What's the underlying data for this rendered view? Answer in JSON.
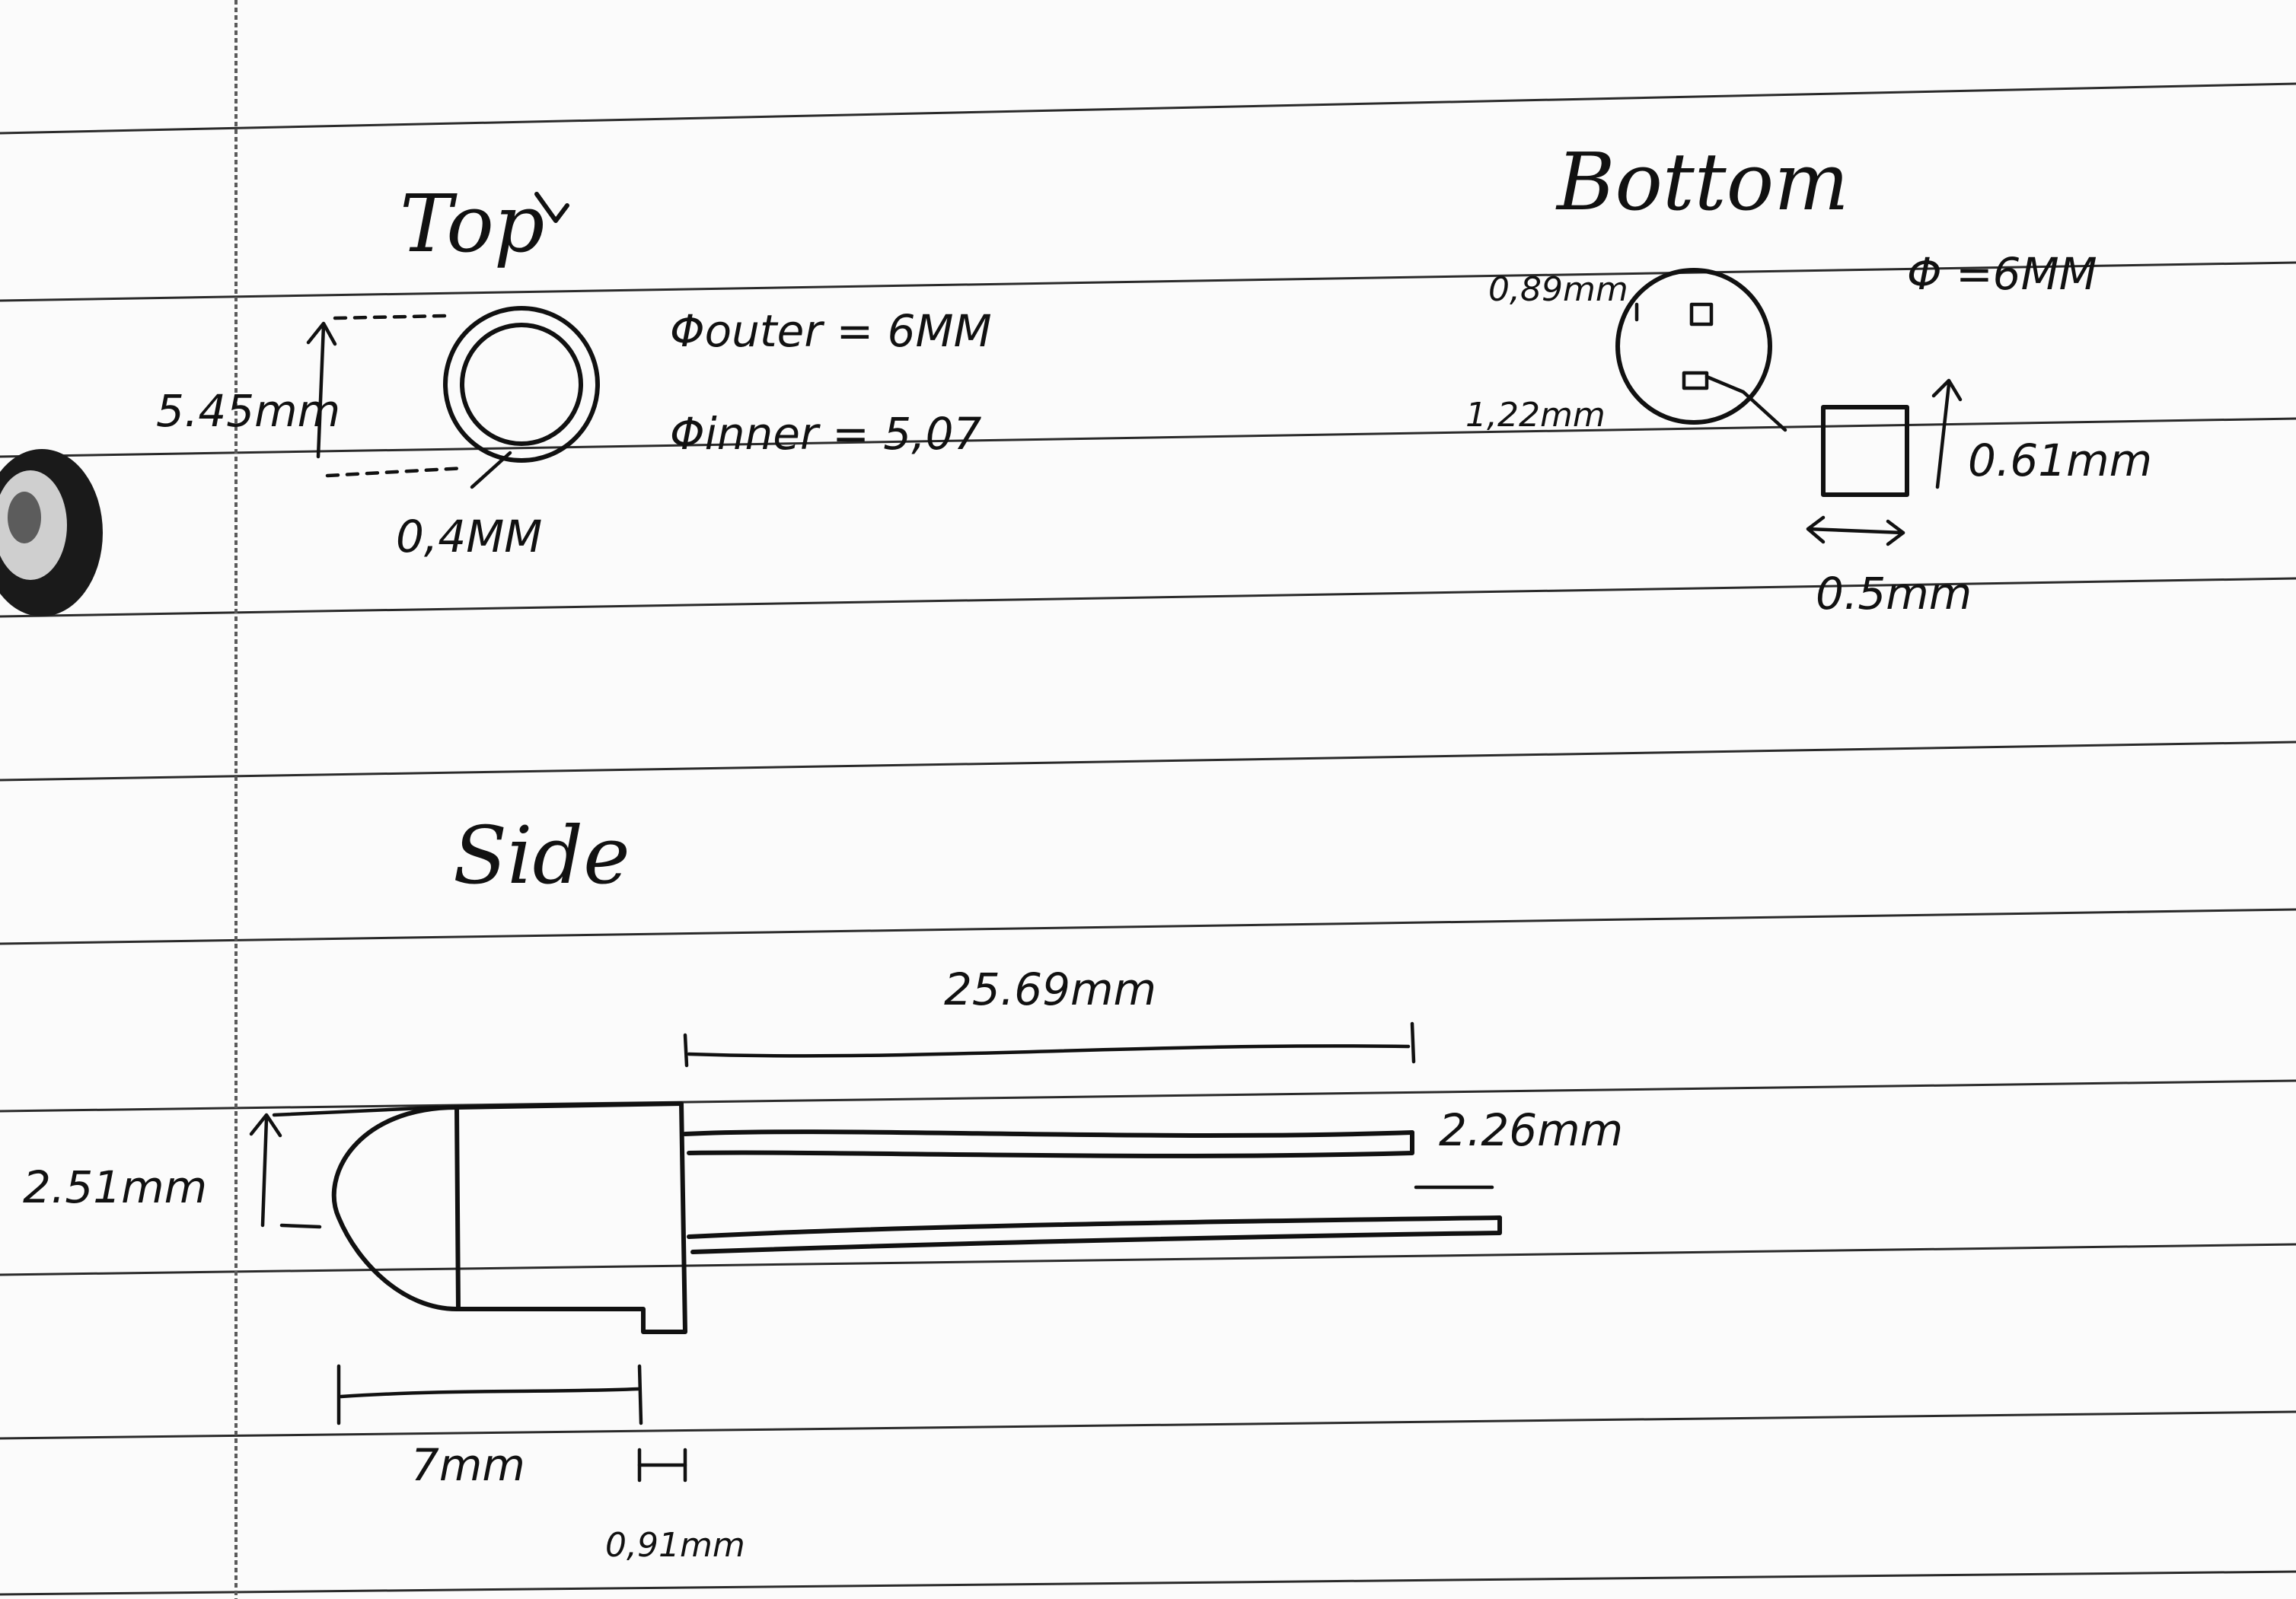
{
  "views": {
    "top": {
      "heading": "Top",
      "height_label": "5.45mm",
      "ring_label": "0,4MM",
      "outer_label": "Φouter = 6MM",
      "inner_label": "Φinner = 5,07"
    },
    "bottom": {
      "heading": "Bottom",
      "diameter_label": "Φ =6MM",
      "pad_spacing_label": "0,89mm",
      "pad_offset_label": "1,22mm",
      "pad_height_label": "0.61mm",
      "pad_width_label": "0.5mm"
    },
    "side": {
      "heading": "Side",
      "lead_length_label": "25.69mm",
      "dome_height_label": "2.51mm",
      "lead_gap_label": "2.26mm",
      "body_length_label": "7mm",
      "flange_label": "0,91mm"
    }
  },
  "colors": {
    "ink": "#111111",
    "paper": "#fbfbfb",
    "rule": "#2a2a2a"
  }
}
